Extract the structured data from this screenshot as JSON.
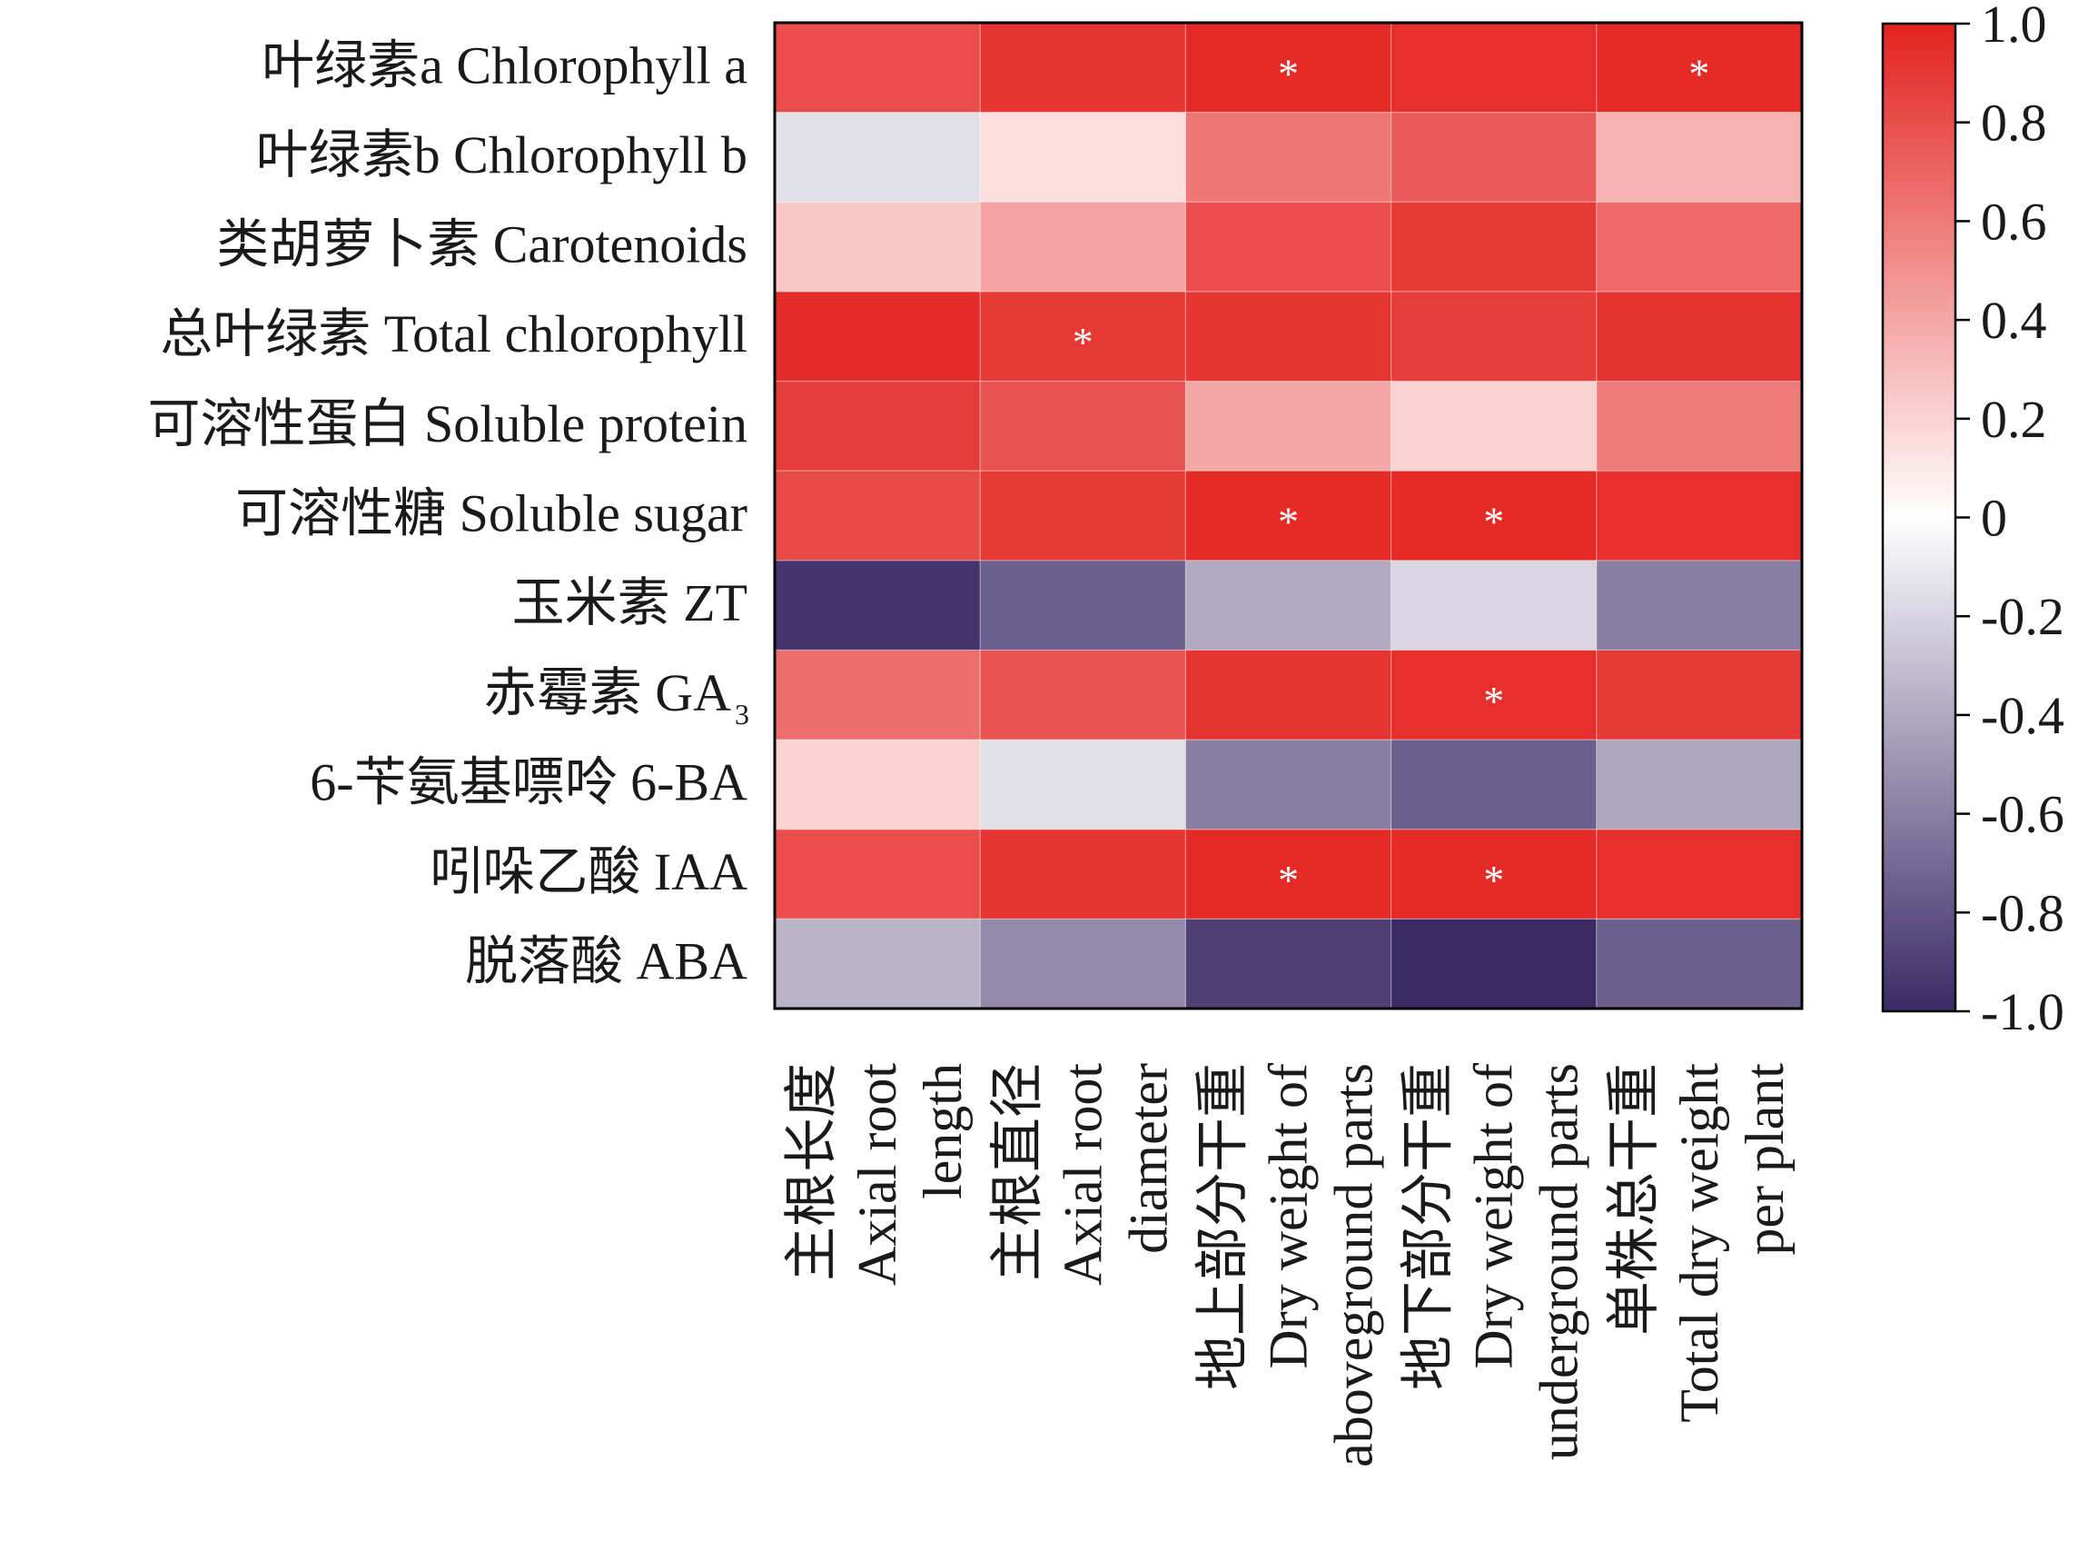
{
  "chart_data": {
    "type": "heatmap",
    "rows": [
      "叶绿素a Chlorophyll a",
      "叶绿素b Chlorophyll b",
      "类胡萝卜素 Carotenoids",
      "总叶绿素 Total chlorophyll",
      "可溶性蛋白 Soluble protein",
      "可溶性糖  Soluble sugar",
      "玉米素 ZT",
      "赤霉素 GA",
      "6-苄氨基嘌呤 6-BA",
      "吲哚乙酸 IAA",
      "脱落酸 ABA"
    ],
    "row_subscripts": [
      "",
      "",
      "",
      "",
      "",
      "",
      "",
      "3",
      "",
      "",
      ""
    ],
    "columns": [
      [
        "主根长度",
        "Axial root",
        "length"
      ],
      [
        "主根直径",
        "Axial root",
        "diameter"
      ],
      [
        "地上部分干重",
        "Dry weight of",
        "aboveground parts"
      ],
      [
        "地下部分干重",
        "Dry weight of",
        "underground parts"
      ],
      [
        "单株总干重",
        "Total dry weight",
        "per plant"
      ]
    ],
    "values": [
      [
        0.8,
        0.92,
        0.96,
        0.94,
        0.96
      ],
      [
        -0.15,
        0.15,
        0.62,
        0.75,
        0.35
      ],
      [
        0.25,
        0.42,
        0.8,
        0.9,
        0.68
      ],
      [
        0.95,
        0.9,
        0.92,
        0.88,
        0.93
      ],
      [
        0.88,
        0.78,
        0.4,
        0.2,
        0.6
      ],
      [
        0.82,
        0.9,
        0.96,
        0.96,
        0.94
      ],
      [
        -0.95,
        -0.75,
        -0.4,
        -0.2,
        -0.6
      ],
      [
        0.65,
        0.78,
        0.92,
        0.94,
        0.9
      ],
      [
        0.2,
        -0.15,
        -0.6,
        -0.75,
        -0.42
      ],
      [
        0.8,
        0.92,
        0.96,
        0.96,
        0.94
      ],
      [
        -0.35,
        -0.55,
        -0.9,
        -1.0,
        -0.75
      ]
    ],
    "significance": [
      [
        "",
        "",
        "*",
        "",
        "*"
      ],
      [
        "",
        "",
        "",
        "",
        ""
      ],
      [
        "",
        "",
        "",
        "",
        ""
      ],
      [
        "",
        "*",
        "",
        "",
        ""
      ],
      [
        "",
        "",
        "",
        "",
        ""
      ],
      [
        "",
        "",
        "*",
        "*",
        ""
      ],
      [
        "",
        "",
        "",
        "",
        ""
      ],
      [
        "",
        "",
        "",
        "*",
        ""
      ],
      [
        "",
        "",
        "",
        "",
        ""
      ],
      [
        "",
        "",
        "*",
        "*",
        ""
      ],
      [
        "",
        "",
        "",
        "",
        ""
      ]
    ],
    "colorbar": {
      "range": [
        -1.0,
        1.0
      ],
      "ticks": [
        1.0,
        0.8,
        0.6,
        0.4,
        0.2,
        0,
        -0.2,
        -0.4,
        -0.6,
        -0.8,
        -1.0
      ],
      "tick_labels": [
        "1.0",
        "0.8",
        "0.6",
        "0.4",
        "0.2",
        "0",
        "-0.2",
        "-0.4",
        "-0.6",
        "-0.8",
        "-1.0"
      ],
      "colors": {
        "negative": "#3a2a66",
        "zero": "#ffffff",
        "positive": "#e3221f"
      }
    }
  }
}
